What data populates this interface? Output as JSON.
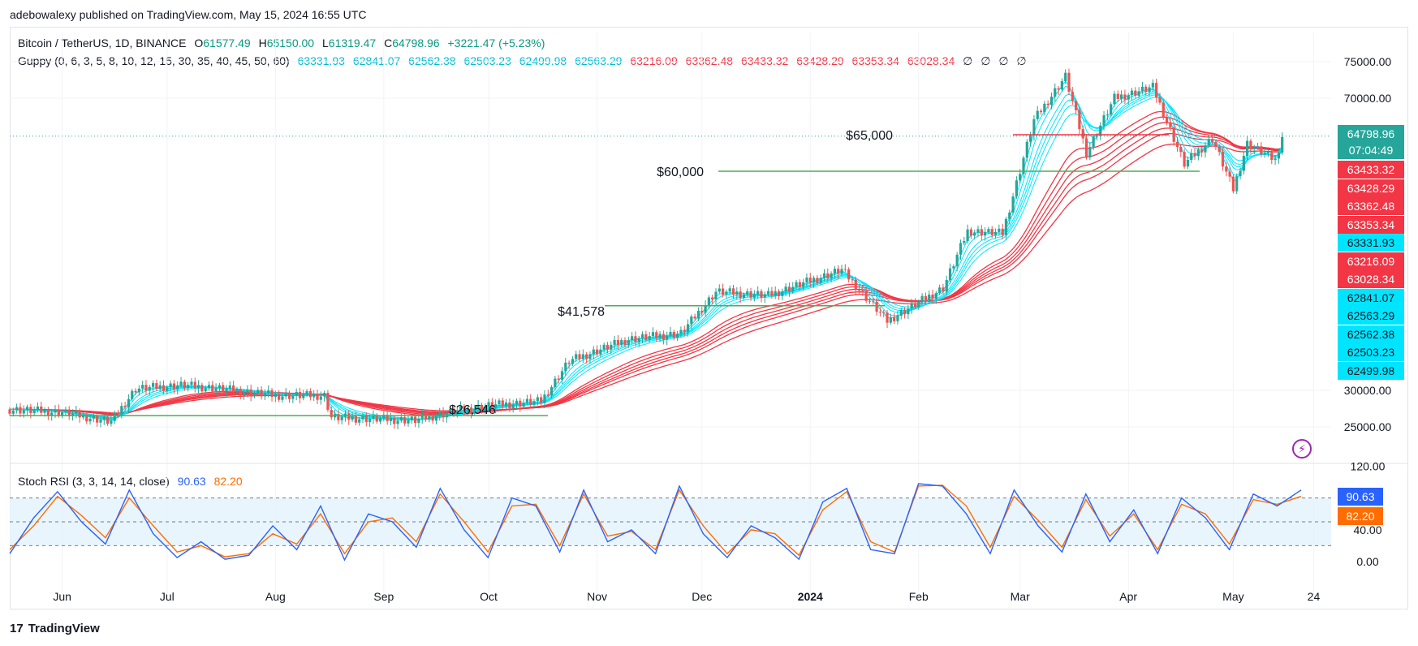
{
  "header": {
    "publisher_line": "adebowalexy published on TradingView.com, May 15, 2024 16:55 UTC"
  },
  "legend": {
    "symbol": "Bitcoin / TetherUS, 1D, BINANCE",
    "open_label": "O",
    "open": "61577.49",
    "high_label": "H",
    "high": "65150.00",
    "low_label": "L",
    "low": "61319.47",
    "close_label": "C",
    "close": "64798.96",
    "change": "+3221.47 (+5.23%)",
    "guppy_label": "Guppy (0, 6, 3, 5, 8, 10, 12, 15, 30, 35, 40, 45, 50, 60)",
    "guppy_short": [
      "63331.93",
      "62841.07",
      "62562.38",
      "62503.23",
      "62499.98",
      "62563.29"
    ],
    "guppy_long": [
      "63216.09",
      "63362.48",
      "63433.32",
      "63428.29",
      "63353.34",
      "63028.34"
    ],
    "guppy_empty": [
      "∅",
      "∅",
      "∅",
      "∅"
    ],
    "stoch_label": "Stoch RSI (3, 3, 14, 14, close)",
    "stoch_k": "90.63",
    "stoch_d": "82.20"
  },
  "price_tags": [
    {
      "value": "64798.96",
      "sub": "07:04:49",
      "color": "#26a69a"
    },
    {
      "value": "63433.32",
      "color": "#f23645"
    },
    {
      "value": "63428.29",
      "color": "#f23645"
    },
    {
      "value": "63362.48",
      "color": "#f23645"
    },
    {
      "value": "63353.34",
      "color": "#f23645"
    },
    {
      "value": "63331.93",
      "color": "#00e5ff"
    },
    {
      "value": "63216.09",
      "color": "#f23645"
    },
    {
      "value": "63028.34",
      "color": "#f23645"
    },
    {
      "value": "62841.07",
      "color": "#00e5ff"
    },
    {
      "value": "62563.29",
      "color": "#00e5ff"
    },
    {
      "value": "62562.38",
      "color": "#00e5ff"
    },
    {
      "value": "62503.23",
      "color": "#00e5ff"
    },
    {
      "value": "62499.98",
      "color": "#00e5ff"
    }
  ],
  "stoch_tags": [
    {
      "value": "90.63",
      "color": "#2962ff"
    },
    {
      "value": "82.20",
      "color": "#ff6d00"
    }
  ],
  "footer": {
    "brand": "TradingView",
    "logo": "17"
  },
  "chart_data": [
    {
      "type": "candlestick",
      "title": "Bitcoin / TetherUS, 1D, BINANCE",
      "y_ticks": [
        25000,
        30000,
        70000,
        75000
      ],
      "y_tick_labels": [
        "25000.00",
        "30000.00",
        "70000.00",
        "75000.00"
      ],
      "x_tick_labels": [
        "Jun",
        "Jul",
        "Aug",
        "Sep",
        "Oct",
        "Nov",
        "Dec",
        "2024",
        "Feb",
        "Mar",
        "Apr",
        "May",
        "24"
      ],
      "x_tick_dates": [
        "2023-06-01",
        "2023-07-01",
        "2023-08-01",
        "2023-09-01",
        "2023-10-01",
        "2023-11-01",
        "2023-12-01",
        "2024-01-01",
        "2024-02-01",
        "2024-03-01",
        "2024-04-01",
        "2024-05-01",
        "2024-05-24"
      ],
      "x_range": [
        "2023-05-17",
        "2024-05-29"
      ],
      "close_path": [
        {
          "date": "2023-05-17",
          "price": 27400
        },
        {
          "date": "2023-06-01",
          "price": 27000
        },
        {
          "date": "2023-06-15",
          "price": 25700
        },
        {
          "date": "2023-06-22",
          "price": 30200
        },
        {
          "date": "2023-07-05",
          "price": 30700
        },
        {
          "date": "2023-07-15",
          "price": 30300
        },
        {
          "date": "2023-08-01",
          "price": 29300
        },
        {
          "date": "2023-08-15",
          "price": 29300
        },
        {
          "date": "2023-08-17",
          "price": 26300
        },
        {
          "date": "2023-09-10",
          "price": 25900
        },
        {
          "date": "2023-09-20",
          "price": 27000
        },
        {
          "date": "2023-10-01",
          "price": 27900
        },
        {
          "date": "2023-10-16",
          "price": 28500
        },
        {
          "date": "2023-10-24",
          "price": 34000
        },
        {
          "date": "2023-11-10",
          "price": 37000
        },
        {
          "date": "2023-11-25",
          "price": 37800
        },
        {
          "date": "2023-12-05",
          "price": 43500
        },
        {
          "date": "2023-12-20",
          "price": 43000
        },
        {
          "date": "2024-01-10",
          "price": 46500
        },
        {
          "date": "2024-01-23",
          "price": 39500
        },
        {
          "date": "2024-02-08",
          "price": 44000
        },
        {
          "date": "2024-02-15",
          "price": 51800
        },
        {
          "date": "2024-02-25",
          "price": 51500
        },
        {
          "date": "2024-03-05",
          "price": 67000
        },
        {
          "date": "2024-03-14",
          "price": 73000
        },
        {
          "date": "2024-03-20",
          "price": 62500
        },
        {
          "date": "2024-03-28",
          "price": 70000
        },
        {
          "date": "2024-04-08",
          "price": 71500
        },
        {
          "date": "2024-04-17",
          "price": 61000
        },
        {
          "date": "2024-04-25",
          "price": 64500
        },
        {
          "date": "2024-05-01",
          "price": 57500
        },
        {
          "date": "2024-05-05",
          "price": 63800
        },
        {
          "date": "2024-05-13",
          "price": 61500
        },
        {
          "date": "2024-05-15",
          "price": 64798.96
        }
      ],
      "current_price": 64798.96,
      "countdown": "07:04:49",
      "annotations": [
        {
          "label": "$65,000",
          "price": 65000
        },
        {
          "label": "$60,000",
          "price": 60000
        },
        {
          "label": "$41,578",
          "price": 41578
        },
        {
          "label": "$26,546",
          "price": 26546
        }
      ]
    },
    {
      "type": "line",
      "title": "Stoch RSI (3, 3, 14, 14, close)",
      "y_ticks": [
        0,
        40,
        120
      ],
      "y_tick_labels": [
        "0.00",
        "40.00",
        "120.00"
      ],
      "bands": [
        20,
        50,
        80
      ],
      "series": [
        {
          "name": "K",
          "color": "#2962ff",
          "values": [
            10,
            55,
            88,
            50,
            22,
            90,
            35,
            5,
            25,
            3,
            8,
            45,
            15,
            70,
            2,
            60,
            50,
            18,
            92,
            40,
            5,
            80,
            70,
            12,
            90,
            25,
            40,
            10,
            95,
            35,
            5,
            45,
            30,
            3,
            75,
            92,
            15,
            10,
            98,
            95,
            60,
            10,
            90,
            45,
            12,
            85,
            25,
            65,
            10,
            80,
            55,
            15,
            85,
            70,
            90
          ]
        },
        {
          "name": "D",
          "color": "#ff6d00",
          "values": [
            15,
            45,
            82,
            58,
            30,
            80,
            45,
            12,
            20,
            6,
            10,
            35,
            22,
            60,
            10,
            50,
            55,
            25,
            85,
            50,
            12,
            70,
            72,
            20,
            85,
            32,
            38,
            15,
            90,
            45,
            10,
            40,
            35,
            8,
            65,
            88,
            25,
            12,
            95,
            96,
            70,
            18,
            82,
            52,
            18,
            78,
            32,
            60,
            15,
            72,
            60,
            22,
            78,
            72,
            82
          ]
        }
      ]
    }
  ]
}
